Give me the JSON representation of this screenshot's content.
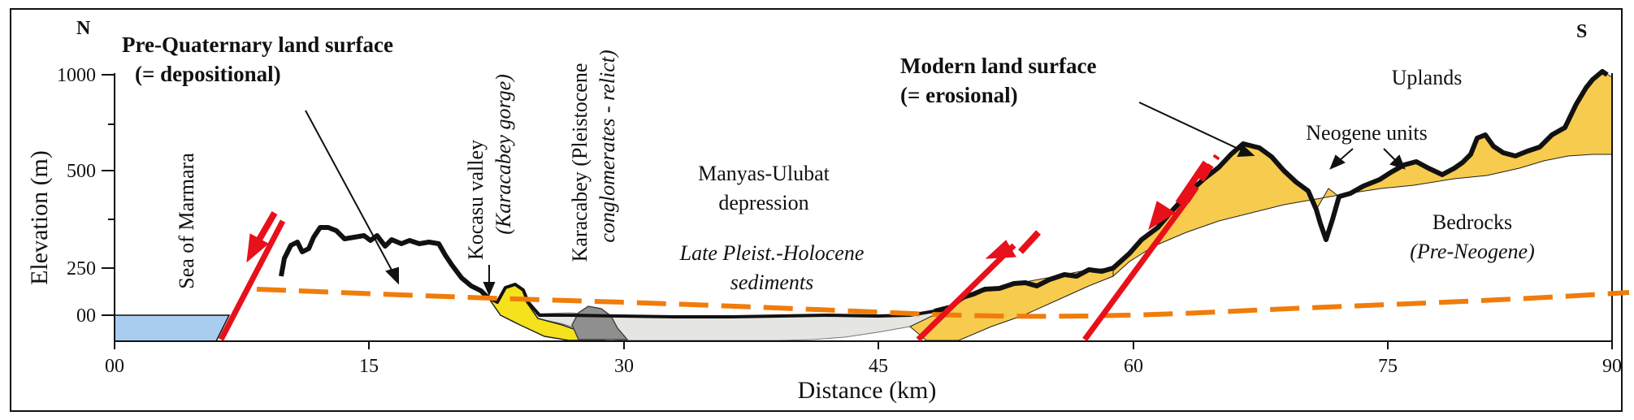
{
  "orientation": {
    "north": "N",
    "south": "S"
  },
  "axes": {
    "y_label": "Elevation (m)",
    "x_label": "Distance (km)",
    "y_ticks": [
      "1000",
      "500",
      "250",
      "00"
    ],
    "x_ticks": [
      "00",
      "15",
      "30",
      "45",
      "60",
      "75",
      "90"
    ]
  },
  "labels": {
    "pre_quaternary_line1": "Pre-Quaternary land surface",
    "pre_quaternary_line2": "(= depositional)",
    "modern_line1": "Modern land surface",
    "modern_line2": "(= erosional)",
    "sea": "Sea of Marmara",
    "kocasu_line1": "Kocasu valley",
    "kocasu_line2": "(Karacabey gorge)",
    "karacabey_line1": "Karacabey (Pleistocene",
    "karacabey_line2": "conglomerates - relict)",
    "depression_line1": "Manyas-Ulubat",
    "depression_line2": "depression",
    "sediments_line1": "Late Pleist.-Holocene",
    "sediments_line2": "sediments",
    "uplands": "Uplands",
    "neogene": "Neogene units",
    "bedrocks_line1": "Bedrocks",
    "bedrocks_line2": "(Pre-Neogene)"
  },
  "colors": {
    "sea": "#a9cdee",
    "neogene": "#f7cb4d",
    "conglomerate_yellow": "#f5e21c",
    "relict_gray": "#8f8f8f",
    "sediments": "#e5e5e1",
    "pre_quaternary_line": "#f07c0a",
    "fault": "#e8101a",
    "surface": "#111111"
  }
}
